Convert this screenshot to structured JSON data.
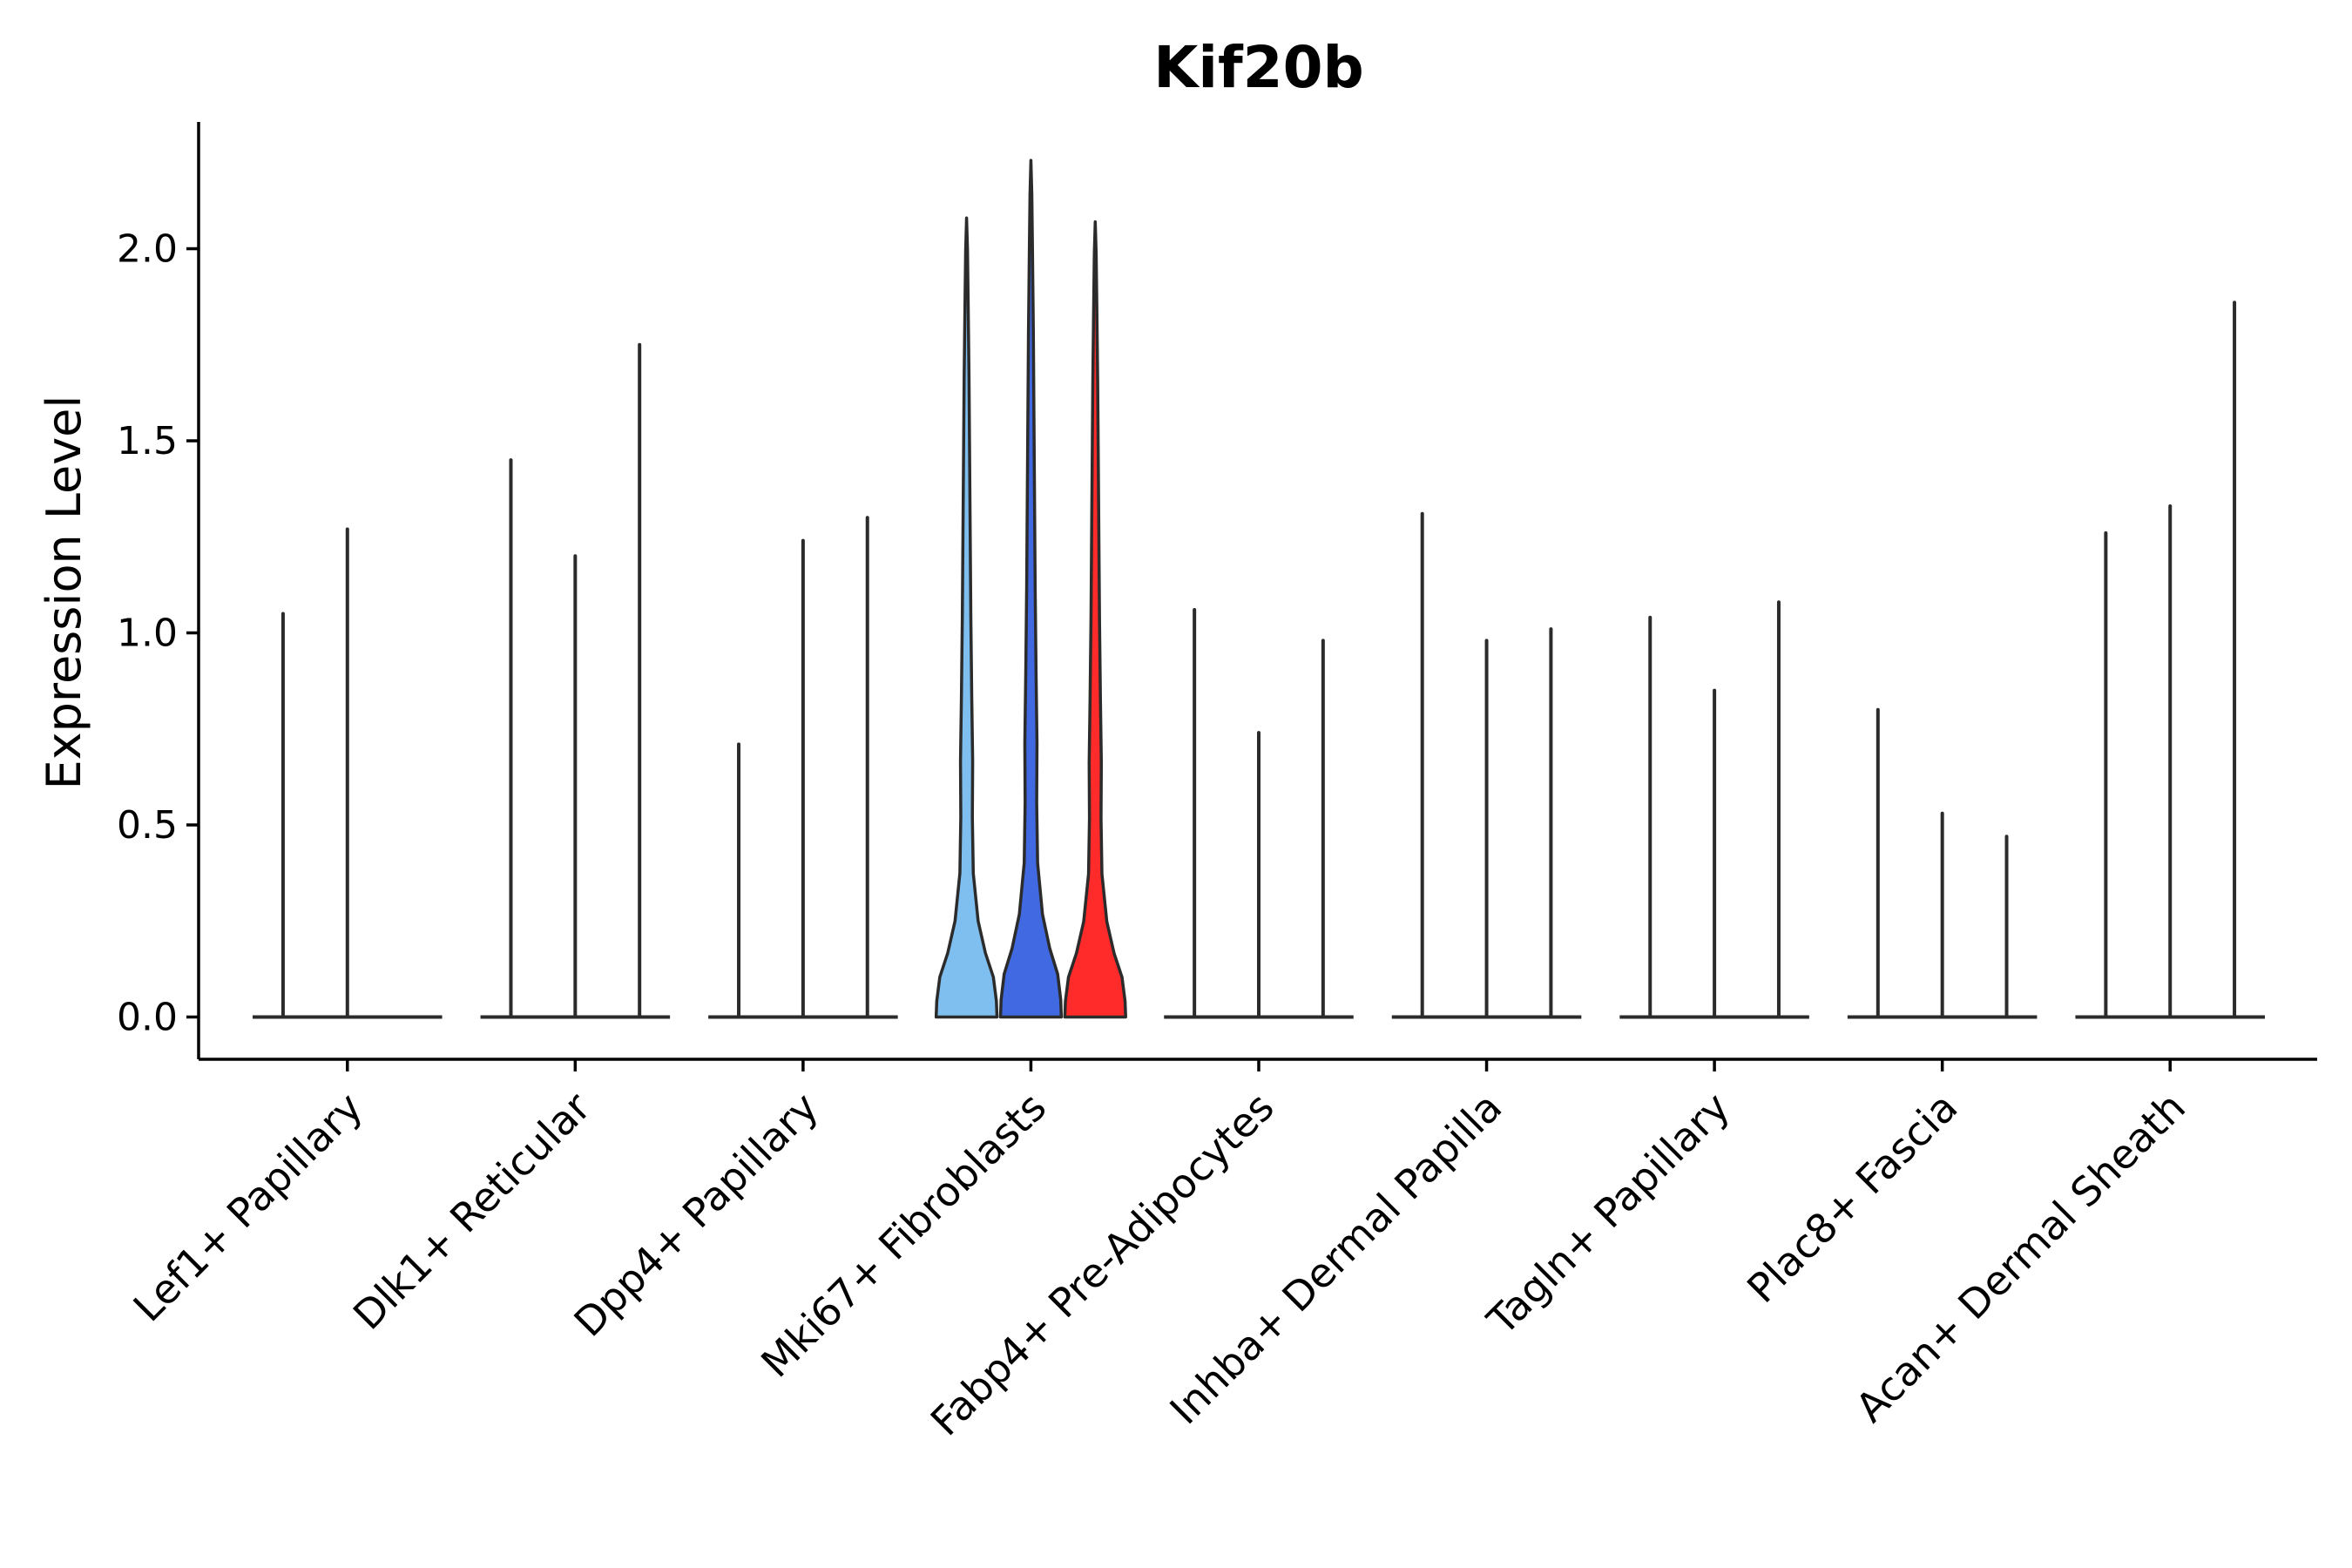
{
  "chart_data": {
    "type": "violin",
    "title": "Kif20b",
    "xlabel": "",
    "ylabel": "Expression Level",
    "ylim": [
      -0.11,
      2.33
    ],
    "yticks": [
      0.0,
      0.5,
      1.0,
      1.5,
      2.0
    ],
    "ytick_labels": [
      "0.0",
      "0.5",
      "1.0",
      "1.5",
      "2.0"
    ],
    "grid": false,
    "legend": "none",
    "categories": [
      "Lef1+ Papillary",
      "Dlk1+ Reticular",
      "Dpp4+ Papillary",
      "Mki67+ Fibroblasts",
      "Fabp4+ Pre-Adipocytes",
      "Inhba+ Dermal Papilla",
      "Tagln+ Papillary",
      "Plac8+ Fascia",
      "Acan+ Dermal Sheath"
    ],
    "series": [
      {
        "name": "Lef1+ Papillary",
        "values": [
          1.05,
          1.27
        ]
      },
      {
        "name": "Dlk1+ Reticular",
        "values": [
          1.45,
          1.2,
          1.75
        ]
      },
      {
        "name": "Dpp4+ Papillary",
        "values": [
          0.71,
          1.24,
          1.3
        ]
      },
      {
        "name": "Mki67+ Fibroblasts",
        "values": [
          2.08,
          2.23,
          2.07
        ],
        "colors": [
          "#7fbfef",
          "#4169e1",
          "#ff2a2a"
        ],
        "filled": true
      },
      {
        "name": "Fabp4+ Pre-Adipocytes",
        "values": [
          1.06,
          0.74,
          0.98
        ]
      },
      {
        "name": "Inhba+ Dermal Papilla",
        "values": [
          1.31,
          0.98,
          1.01
        ]
      },
      {
        "name": "Tagln+ Papillary",
        "values": [
          1.04,
          0.85,
          1.08
        ]
      },
      {
        "name": "Plac8+ Fascia",
        "values": [
          0.8,
          0.53,
          0.47
        ]
      },
      {
        "name": "Acan+ Dermal Sheath",
        "values": [
          1.26,
          1.33,
          1.86
        ]
      }
    ]
  }
}
